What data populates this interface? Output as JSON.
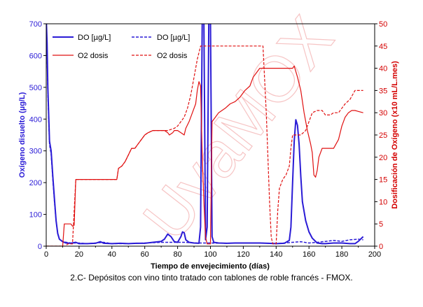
{
  "chart_data": {
    "type": "line",
    "watermark": "UvaMOX",
    "xlabel": "Tiempo de envejecimiento (días)",
    "ylabel_left": "Oxígeno disuelto (µg/L)",
    "ylabel_right": "Dosificación de  Oxígeno (x10 mL/L.mes)",
    "xlim": [
      0,
      200
    ],
    "ylim_left": [
      0,
      700
    ],
    "ylim_right": [
      0,
      50
    ],
    "x_ticks": [
      "0",
      "20",
      "40",
      "60",
      "80",
      "100",
      "120",
      "140",
      "160",
      "180",
      "200"
    ],
    "y_left_ticks": [
      "0",
      "100",
      "200",
      "300",
      "400",
      "500",
      "600",
      "700"
    ],
    "y_right_ticks": [
      "0",
      "5",
      "10",
      "15",
      "20",
      "25",
      "30",
      "35",
      "40",
      "45",
      "50"
    ],
    "legend_labels": [
      "DO [µg/L]",
      "DO [µg/L]",
      "O2 dosis",
      "O2 dosis"
    ],
    "colors": {
      "do": "#2a1bd6",
      "dose": "#e01010",
      "watermark": "#f4b6b6"
    },
    "series": [
      {
        "name": "DO [µg/L]",
        "axis": "left",
        "style": "solid",
        "color": "#2a1bd6",
        "points": [
          [
            0,
            720
          ],
          [
            0.5,
            640
          ],
          [
            1,
            500
          ],
          [
            2,
            330
          ],
          [
            3,
            300
          ],
          [
            4,
            220
          ],
          [
            5,
            150
          ],
          [
            6,
            80
          ],
          [
            7,
            40
          ],
          [
            8,
            22
          ],
          [
            10,
            14
          ],
          [
            12,
            10
          ],
          [
            15,
            9
          ],
          [
            18,
            12
          ],
          [
            20,
            8
          ],
          [
            25,
            8
          ],
          [
            30,
            9
          ],
          [
            33,
            14
          ],
          [
            35,
            9
          ],
          [
            40,
            8
          ],
          [
            45,
            9
          ],
          [
            50,
            8
          ],
          [
            55,
            9
          ],
          [
            60,
            9
          ],
          [
            65,
            12
          ],
          [
            70,
            15
          ],
          [
            72,
            22
          ],
          [
            74,
            38
          ],
          [
            76,
            30
          ],
          [
            78,
            14
          ],
          [
            80,
            12
          ],
          [
            82,
            30
          ],
          [
            83,
            45
          ],
          [
            84,
            42
          ],
          [
            85,
            20
          ],
          [
            87,
            12
          ],
          [
            90,
            10
          ],
          [
            93,
            9
          ],
          [
            94,
            60
          ],
          [
            95,
            720
          ],
          [
            96,
            720
          ],
          [
            97,
            20
          ],
          [
            98,
            60
          ],
          [
            99,
            720
          ],
          [
            100,
            720
          ],
          [
            101,
            30
          ],
          [
            102,
            12
          ],
          [
            105,
            10
          ],
          [
            110,
            9
          ],
          [
            115,
            10
          ],
          [
            120,
            10
          ],
          [
            125,
            10
          ],
          [
            130,
            10
          ],
          [
            135,
            9
          ],
          [
            140,
            8
          ],
          [
            145,
            9
          ],
          [
            148,
            18
          ],
          [
            149,
            60
          ],
          [
            150,
            200
          ],
          [
            151,
            330
          ],
          [
            152,
            398
          ],
          [
            153,
            380
          ],
          [
            154,
            320
          ],
          [
            155,
            220
          ],
          [
            156,
            140
          ],
          [
            158,
            80
          ],
          [
            160,
            45
          ],
          [
            162,
            25
          ],
          [
            165,
            10
          ],
          [
            168,
            8
          ],
          [
            170,
            8
          ],
          [
            175,
            10
          ],
          [
            180,
            10
          ],
          [
            185,
            8
          ],
          [
            188,
            8
          ],
          [
            190,
            15
          ],
          [
            193,
            30
          ]
        ]
      },
      {
        "name": "DO [µg/L]",
        "axis": "left",
        "style": "dashed",
        "color": "#2a1bd6",
        "points": [
          [
            0,
            700
          ],
          [
            0.5,
            620
          ],
          [
            1,
            480
          ],
          [
            2,
            320
          ],
          [
            3,
            290
          ],
          [
            4,
            210
          ],
          [
            5,
            140
          ],
          [
            6,
            80
          ],
          [
            7,
            40
          ],
          [
            8,
            22
          ],
          [
            10,
            14
          ],
          [
            15,
            10
          ],
          [
            20,
            10
          ],
          [
            25,
            8
          ],
          [
            30,
            10
          ],
          [
            35,
            12
          ],
          [
            40,
            8
          ],
          [
            50,
            8
          ],
          [
            60,
            10
          ],
          [
            70,
            12
          ],
          [
            80,
            12
          ],
          [
            85,
            12
          ],
          [
            90,
            10
          ],
          [
            95,
            10
          ],
          [
            100,
            10
          ],
          [
            110,
            9
          ],
          [
            120,
            10
          ],
          [
            130,
            10
          ],
          [
            135,
            9
          ],
          [
            140,
            8
          ],
          [
            145,
            10
          ],
          [
            150,
            12
          ],
          [
            155,
            14
          ],
          [
            160,
            10
          ],
          [
            165,
            12
          ],
          [
            170,
            15
          ],
          [
            175,
            18
          ],
          [
            180,
            15
          ],
          [
            185,
            20
          ],
          [
            190,
            22
          ],
          [
            193,
            20
          ]
        ]
      },
      {
        "name": "O2 dosis",
        "axis": "right",
        "style": "solid",
        "color": "#e01010",
        "points": [
          [
            0,
            0
          ],
          [
            10,
            0
          ],
          [
            11,
            5
          ],
          [
            15,
            5
          ],
          [
            16,
            4.5
          ],
          [
            17,
            4.7
          ],
          [
            18,
            15
          ],
          [
            42,
            15
          ],
          [
            43,
            15
          ],
          [
            44,
            17.5
          ],
          [
            46,
            18
          ],
          [
            48,
            19
          ],
          [
            50,
            20.5
          ],
          [
            52,
            22
          ],
          [
            54,
            22
          ],
          [
            56,
            23
          ],
          [
            58,
            24
          ],
          [
            60,
            25
          ],
          [
            62,
            25.5
          ],
          [
            65,
            26
          ],
          [
            70,
            26
          ],
          [
            72,
            26
          ],
          [
            74,
            25.5
          ],
          [
            75,
            25
          ],
          [
            77,
            25.5
          ],
          [
            78,
            26
          ],
          [
            80,
            26
          ],
          [
            82,
            25.5
          ],
          [
            84,
            25
          ],
          [
            85,
            26.5
          ],
          [
            87,
            28
          ],
          [
            89,
            30
          ],
          [
            91,
            32
          ],
          [
            92,
            35
          ],
          [
            93,
            37
          ],
          [
            94,
            36
          ],
          [
            95,
            20
          ],
          [
            96,
            10
          ],
          [
            97,
            2
          ],
          [
            98,
            0.5
          ],
          [
            100,
            0.5
          ],
          [
            101,
            28
          ],
          [
            103,
            29
          ],
          [
            105,
            30
          ],
          [
            107,
            30.5
          ],
          [
            109,
            31
          ],
          [
            112,
            32
          ],
          [
            115,
            32.5
          ],
          [
            118,
            33.5
          ],
          [
            121,
            35
          ],
          [
            124,
            36
          ],
          [
            126,
            38
          ],
          [
            128,
            39
          ],
          [
            130,
            40
          ],
          [
            132,
            40
          ],
          [
            134,
            40
          ],
          [
            136,
            40
          ],
          [
            138,
            40
          ],
          [
            140,
            40
          ],
          [
            142,
            40
          ],
          [
            144,
            40
          ],
          [
            146,
            40
          ],
          [
            148,
            40
          ],
          [
            150,
            40
          ],
          [
            151,
            40.5
          ],
          [
            153,
            38
          ],
          [
            155,
            35
          ],
          [
            157,
            30
          ],
          [
            159,
            26
          ],
          [
            161,
            23
          ],
          [
            162,
            21
          ],
          [
            163,
            16
          ],
          [
            164,
            15.5
          ],
          [
            165,
            17
          ],
          [
            166,
            20
          ],
          [
            168,
            22
          ],
          [
            170,
            22
          ],
          [
            172,
            22
          ],
          [
            175,
            22
          ],
          [
            178,
            24
          ],
          [
            180,
            27
          ],
          [
            182,
            29
          ],
          [
            184,
            30
          ],
          [
            186,
            30.5
          ],
          [
            188,
            30.5
          ],
          [
            190,
            30.3
          ],
          [
            193,
            30
          ]
        ]
      },
      {
        "name": "O2 dosis",
        "axis": "right",
        "style": "dashed",
        "color": "#e01010",
        "points": [
          [
            0,
            0
          ],
          [
            12,
            0
          ],
          [
            13,
            0.5
          ],
          [
            15,
            0.5
          ],
          [
            16,
            0.5
          ],
          [
            18,
            15
          ],
          [
            42,
            15
          ],
          [
            43,
            15
          ],
          [
            44,
            17.5
          ],
          [
            46,
            18
          ],
          [
            48,
            19
          ],
          [
            50,
            20.5
          ],
          [
            52,
            22
          ],
          [
            54,
            22
          ],
          [
            56,
            23
          ],
          [
            58,
            24
          ],
          [
            60,
            25
          ],
          [
            62,
            25.5
          ],
          [
            65,
            26
          ],
          [
            70,
            26
          ],
          [
            74,
            26
          ],
          [
            78,
            26.5
          ],
          [
            80,
            27
          ],
          [
            82,
            28
          ],
          [
            84,
            29
          ],
          [
            86,
            31
          ],
          [
            88,
            34
          ],
          [
            90,
            38
          ],
          [
            92,
            42
          ],
          [
            94,
            45
          ],
          [
            96,
            45
          ],
          [
            100,
            45
          ],
          [
            110,
            45
          ],
          [
            120,
            45
          ],
          [
            130,
            45
          ],
          [
            132,
            45
          ],
          [
            134,
            30
          ],
          [
            136,
            10
          ],
          [
            137,
            2
          ],
          [
            138,
            0.5
          ],
          [
            140,
            0.5
          ],
          [
            141,
            8
          ],
          [
            142,
            13
          ],
          [
            144,
            15
          ],
          [
            146,
            16
          ],
          [
            147,
            17
          ],
          [
            148,
            18
          ],
          [
            149,
            22
          ],
          [
            150,
            25
          ],
          [
            152,
            25
          ],
          [
            155,
            25
          ],
          [
            158,
            26
          ],
          [
            160,
            28
          ],
          [
            162,
            30
          ],
          [
            165,
            30.5
          ],
          [
            168,
            30.5
          ],
          [
            170,
            29.5
          ],
          [
            173,
            29.5
          ],
          [
            175,
            30
          ],
          [
            178,
            30
          ],
          [
            180,
            31
          ],
          [
            182,
            32
          ],
          [
            185,
            33
          ],
          [
            188,
            35
          ],
          [
            190,
            35
          ],
          [
            193,
            35
          ]
        ]
      }
    ]
  },
  "caption": "2.C- Depósitos con vino tinto tratado con tablones de roble francés - FMOX."
}
